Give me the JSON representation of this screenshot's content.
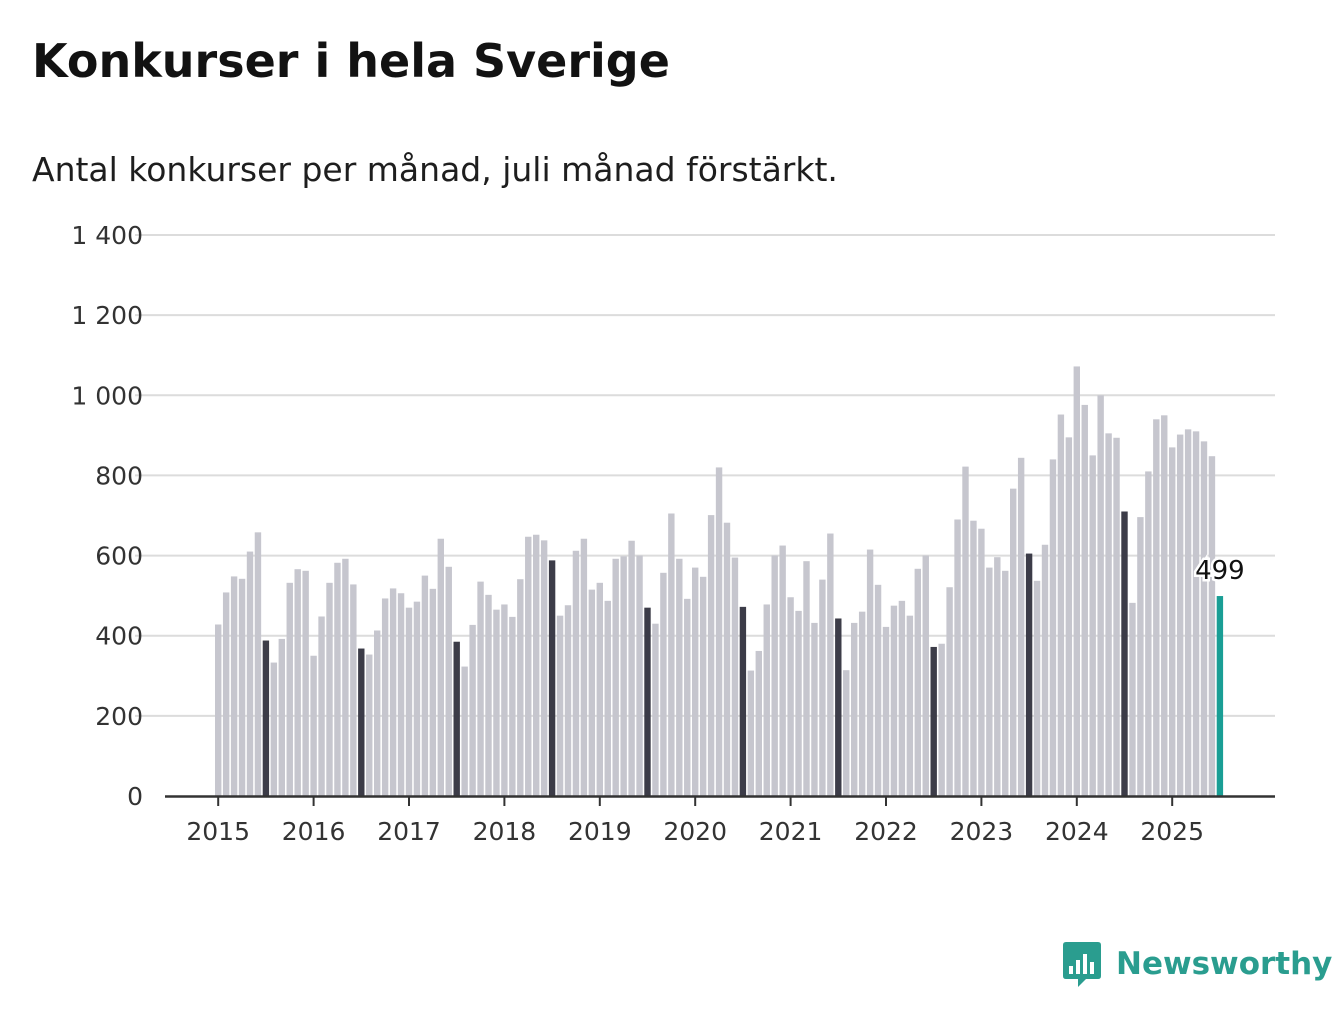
{
  "title": "Konkurser i hela Sverige",
  "subtitle": "Antal konkurser per månad, juli månad förstärkt.",
  "logo": {
    "text": "Newsworthy",
    "icon": "bar-chart-speech-bubble-icon",
    "color": "#2a9d8f"
  },
  "colors": {
    "regular": "#c6c6ce",
    "july": "#3c3c48",
    "latest": "#1a9e95",
    "grid": "#dcdcdc",
    "axis": "#333333"
  },
  "chart_data": {
    "type": "bar",
    "frequency": "monthly",
    "start": "2015-01",
    "end": "2025-07",
    "ylim": [
      0,
      1400
    ],
    "yticks": [
      0,
      200,
      400,
      600,
      800,
      1000,
      1200,
      1400
    ],
    "ytick_labels": [
      "0",
      "200",
      "400",
      "600",
      "800",
      "1 000",
      "1 200",
      "1 400"
    ],
    "xtick_labels": [
      "2015",
      "2016",
      "2017",
      "2018",
      "2019",
      "2020",
      "2021",
      "2022",
      "2023",
      "2024",
      "2025"
    ],
    "grid": true,
    "highlight_month": "juli",
    "latest_label": "499",
    "values": [
      428,
      508,
      548,
      542,
      610,
      658,
      388,
      333,
      392,
      532,
      566,
      562,
      350,
      448,
      532,
      582,
      592,
      528,
      368,
      353,
      413,
      493,
      518,
      506,
      470,
      485,
      550,
      517,
      642,
      572,
      385,
      323,
      427,
      535,
      502,
      465,
      478,
      447,
      541,
      647,
      652,
      638,
      588,
      450,
      476,
      612,
      642,
      515,
      532,
      487,
      592,
      598,
      637,
      600,
      470,
      430,
      557,
      705,
      592,
      492,
      570,
      547,
      701,
      820,
      682,
      595,
      472,
      313,
      362,
      478,
      600,
      625,
      496,
      462,
      586,
      432,
      540,
      655,
      443,
      314,
      432,
      460,
      615,
      527,
      422,
      475,
      487,
      450,
      567,
      600,
      372,
      380,
      521,
      690,
      822,
      687,
      667,
      570,
      596,
      562,
      767,
      844,
      605,
      537,
      627,
      840,
      952,
      895,
      1072,
      976,
      850,
      1000,
      905,
      894,
      710,
      482,
      696,
      810,
      940,
      950,
      870,
      902,
      915,
      910,
      885,
      848,
      499
    ]
  }
}
